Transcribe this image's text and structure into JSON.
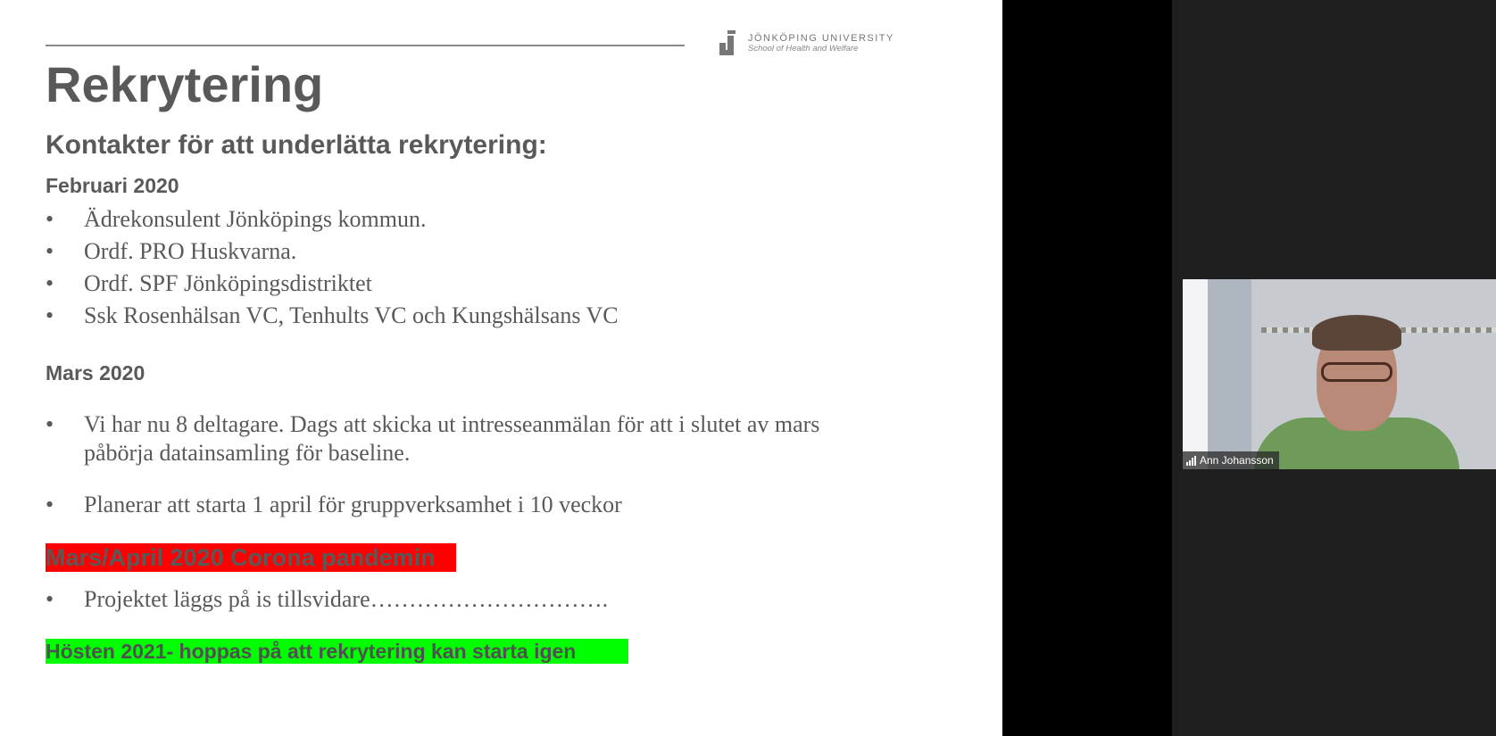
{
  "slide": {
    "logo": {
      "name": "JÖNKÖPING UNIVERSITY",
      "school": "School of Health and Welfare"
    },
    "title": "Rekrytering",
    "subtitle": "Kontakter för att underlätta rekrytering:",
    "sections": [
      {
        "heading": "Februari 2020",
        "bullets": [
          "Ädrekonsulent Jönköpings kommun.",
          "Ordf. PRO Huskvarna.",
          "Ordf. SPF Jönköpingsdistriktet",
          "Ssk Rosenhälsan VC, Tenhults VC och Kungshälsans VC"
        ]
      },
      {
        "heading": "Mars 2020",
        "bullets": [
          "Vi har nu 8 deltagare. Dags att skicka ut intresseanmälan för att i slutet av mars",
          "påbörja datainsamling för baseline.",
          "Planerar att  starta 1 april för gruppverksamhet  i 10 veckor"
        ]
      }
    ],
    "red_banner": "Mars/April 2020 Corona pandemin",
    "red_bullet": "Projektet läggs på is tillsvidare………………………….",
    "green_banner": "Hösten 2021- hoppas på att rekrytering kan starta igen",
    "bullet_char": "•"
  },
  "video": {
    "participant_name": "Ann Johansson",
    "icon": "signal-strength-icon"
  },
  "colors": {
    "red_highlight": "#ff0000",
    "green_highlight": "#00ff00",
    "text": "#595959"
  }
}
